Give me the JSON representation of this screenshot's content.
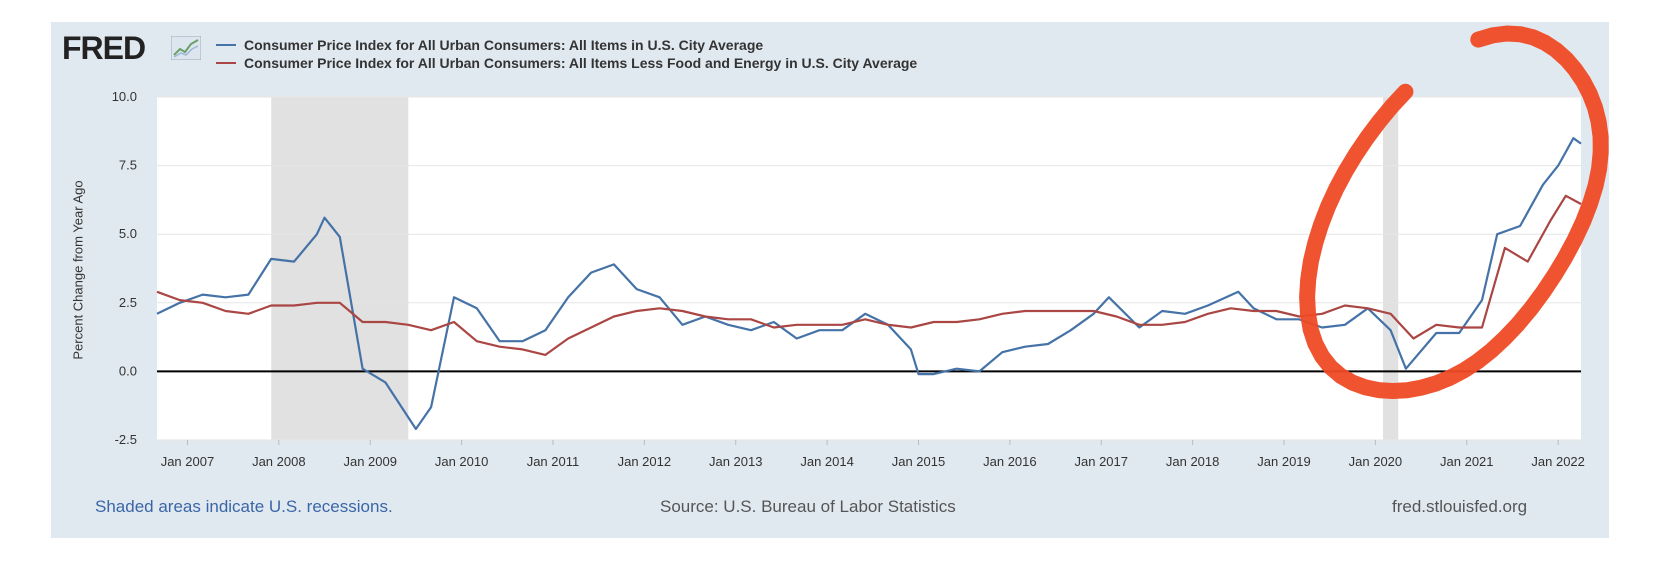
{
  "logo": {
    "text": "FRED",
    "icon": "fred-chart-icon"
  },
  "footer": {
    "recessions_note": "Shaded areas indicate U.S. recessions.",
    "source": "Source: U.S. Bureau of Labor Statistics",
    "url": "fred.stlouisfed.org"
  },
  "colors": {
    "cpi": "#4572a7",
    "core": "#aa4643",
    "recession": "#e1e1e1",
    "annotation": "#ef4a24"
  },
  "chart_data": {
    "type": "line",
    "title": "",
    "xlabel": "",
    "ylabel": "Percent Change from Year Ago",
    "ylim": [
      -2.5,
      10.0
    ],
    "xlim": [
      "2006-09",
      "2022-04"
    ],
    "yticks": [
      "10.0",
      "7.5",
      "5.0",
      "2.5",
      "0.0",
      "-2.5"
    ],
    "xticks": [
      "Jan 2007",
      "Jan 2008",
      "Jan 2009",
      "Jan 2010",
      "Jan 2011",
      "Jan 2012",
      "Jan 2013",
      "Jan 2014",
      "Jan 2015",
      "Jan 2016",
      "Jan 2017",
      "Jan 2018",
      "Jan 2019",
      "Jan 2020",
      "Jan 2021",
      "Jan 2022"
    ],
    "grid": true,
    "legend": "top-left",
    "recessions": [
      [
        "2007-12",
        "2009-06"
      ],
      [
        "2020-02",
        "2020-04"
      ]
    ],
    "annotation": "hand-drawn red circle around 2020–2022",
    "series": [
      {
        "name": "Consumer Price Index for All Urban Consumers: All Items in U.S. City Average",
        "x": [
          "2006-09",
          "2006-12",
          "2007-03",
          "2007-06",
          "2007-09",
          "2007-12",
          "2008-03",
          "2008-06",
          "2008-07",
          "2008-09",
          "2008-12",
          "2009-03",
          "2009-07",
          "2009-09",
          "2009-12",
          "2010-03",
          "2010-06",
          "2010-09",
          "2010-12",
          "2011-03",
          "2011-06",
          "2011-09",
          "2011-12",
          "2012-03",
          "2012-06",
          "2012-09",
          "2012-12",
          "2013-03",
          "2013-06",
          "2013-09",
          "2013-12",
          "2014-03",
          "2014-06",
          "2014-09",
          "2014-12",
          "2015-01",
          "2015-03",
          "2015-06",
          "2015-09",
          "2015-12",
          "2016-03",
          "2016-06",
          "2016-09",
          "2016-12",
          "2017-02",
          "2017-06",
          "2017-09",
          "2017-12",
          "2018-03",
          "2018-07",
          "2018-09",
          "2018-12",
          "2019-03",
          "2019-06",
          "2019-09",
          "2019-12",
          "2020-03",
          "2020-05",
          "2020-09",
          "2020-12",
          "2021-03",
          "2021-05",
          "2021-08",
          "2021-11",
          "2022-01",
          "2022-03",
          "2022-04"
        ],
        "values": [
          2.1,
          2.5,
          2.8,
          2.7,
          2.8,
          4.1,
          4.0,
          5.0,
          5.6,
          4.9,
          0.1,
          -0.4,
          -2.1,
          -1.3,
          2.7,
          2.3,
          1.1,
          1.1,
          1.5,
          2.7,
          3.6,
          3.9,
          3.0,
          2.7,
          1.7,
          2.0,
          1.7,
          1.5,
          1.8,
          1.2,
          1.5,
          1.5,
          2.1,
          1.7,
          0.8,
          -0.1,
          -0.1,
          0.1,
          0.0,
          0.7,
          0.9,
          1.0,
          1.5,
          2.1,
          2.7,
          1.6,
          2.2,
          2.1,
          2.4,
          2.9,
          2.3,
          1.9,
          1.9,
          1.6,
          1.7,
          2.3,
          1.5,
          0.1,
          1.4,
          1.4,
          2.6,
          5.0,
          5.3,
          6.8,
          7.5,
          8.5,
          8.3
        ]
      },
      {
        "name": "Consumer Price Index for All Urban Consumers: All Items Less Food and Energy in U.S. City Average",
        "x": [
          "2006-09",
          "2006-12",
          "2007-03",
          "2007-06",
          "2007-09",
          "2007-12",
          "2008-03",
          "2008-06",
          "2008-09",
          "2008-12",
          "2009-03",
          "2009-06",
          "2009-09",
          "2009-12",
          "2010-03",
          "2010-06",
          "2010-09",
          "2010-12",
          "2011-03",
          "2011-06",
          "2011-09",
          "2011-12",
          "2012-03",
          "2012-06",
          "2012-09",
          "2012-12",
          "2013-03",
          "2013-06",
          "2013-09",
          "2013-12",
          "2014-03",
          "2014-06",
          "2014-09",
          "2014-12",
          "2015-03",
          "2015-06",
          "2015-09",
          "2015-12",
          "2016-03",
          "2016-06",
          "2016-09",
          "2016-12",
          "2017-03",
          "2017-06",
          "2017-09",
          "2017-12",
          "2018-03",
          "2018-06",
          "2018-09",
          "2018-12",
          "2019-03",
          "2019-06",
          "2019-09",
          "2019-12",
          "2020-03",
          "2020-06",
          "2020-09",
          "2020-12",
          "2021-03",
          "2021-06",
          "2021-09",
          "2021-12",
          "2022-02",
          "2022-04"
        ],
        "values": [
          2.9,
          2.6,
          2.5,
          2.2,
          2.1,
          2.4,
          2.4,
          2.5,
          2.5,
          1.8,
          1.8,
          1.7,
          1.5,
          1.8,
          1.1,
          0.9,
          0.8,
          0.6,
          1.2,
          1.6,
          2.0,
          2.2,
          2.3,
          2.2,
          2.0,
          1.9,
          1.9,
          1.6,
          1.7,
          1.7,
          1.7,
          1.9,
          1.7,
          1.6,
          1.8,
          1.8,
          1.9,
          2.1,
          2.2,
          2.2,
          2.2,
          2.2,
          2.0,
          1.7,
          1.7,
          1.8,
          2.1,
          2.3,
          2.2,
          2.2,
          2.0,
          2.1,
          2.4,
          2.3,
          2.1,
          1.2,
          1.7,
          1.6,
          1.6,
          4.5,
          4.0,
          5.5,
          6.4,
          6.1
        ]
      }
    ]
  }
}
